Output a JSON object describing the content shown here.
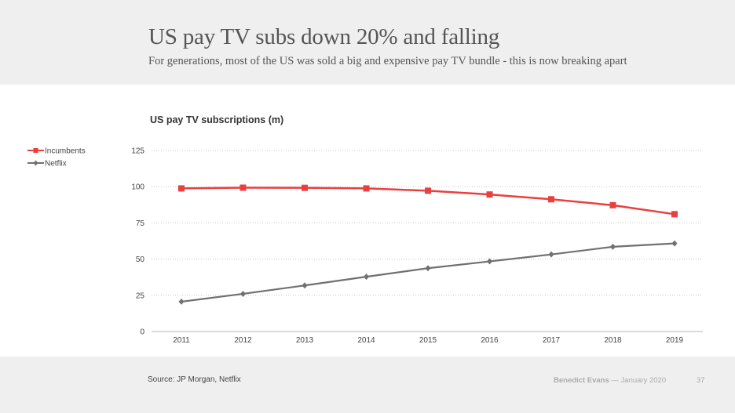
{
  "header": {
    "title": "US pay TV subs down 20% and falling",
    "subtitle": "For generations, most of the US was sold a big and expensive pay TV bundle - this is now breaking apart"
  },
  "footer": {
    "source": "Source: JP Morgan, Netflix",
    "author": "Benedict Evans",
    "date": "— January 2020",
    "page": "37"
  },
  "chart_data": {
    "type": "line",
    "title": "US pay TV subscriptions (m)",
    "xlabel": "",
    "ylabel": "",
    "x": [
      "2011",
      "2012",
      "2013",
      "2014",
      "2015",
      "2016",
      "2017",
      "2018",
      "2019"
    ],
    "ylim": [
      0,
      125
    ],
    "yticks": [
      0,
      25,
      50,
      75,
      100,
      125
    ],
    "grid": true,
    "legend": "left",
    "series": [
      {
        "name": "Incumbents",
        "color": "#e8403f",
        "marker": "square",
        "values": [
          98.8,
          99.3,
          99.2,
          98.8,
          97.2,
          94.6,
          91.3,
          87.2,
          81.0
        ]
      },
      {
        "name": "Netflix",
        "color": "#707070",
        "marker": "diamond",
        "values": [
          20.6,
          26.0,
          31.8,
          37.8,
          43.7,
          48.4,
          53.2,
          58.5,
          60.8
        ]
      }
    ]
  }
}
